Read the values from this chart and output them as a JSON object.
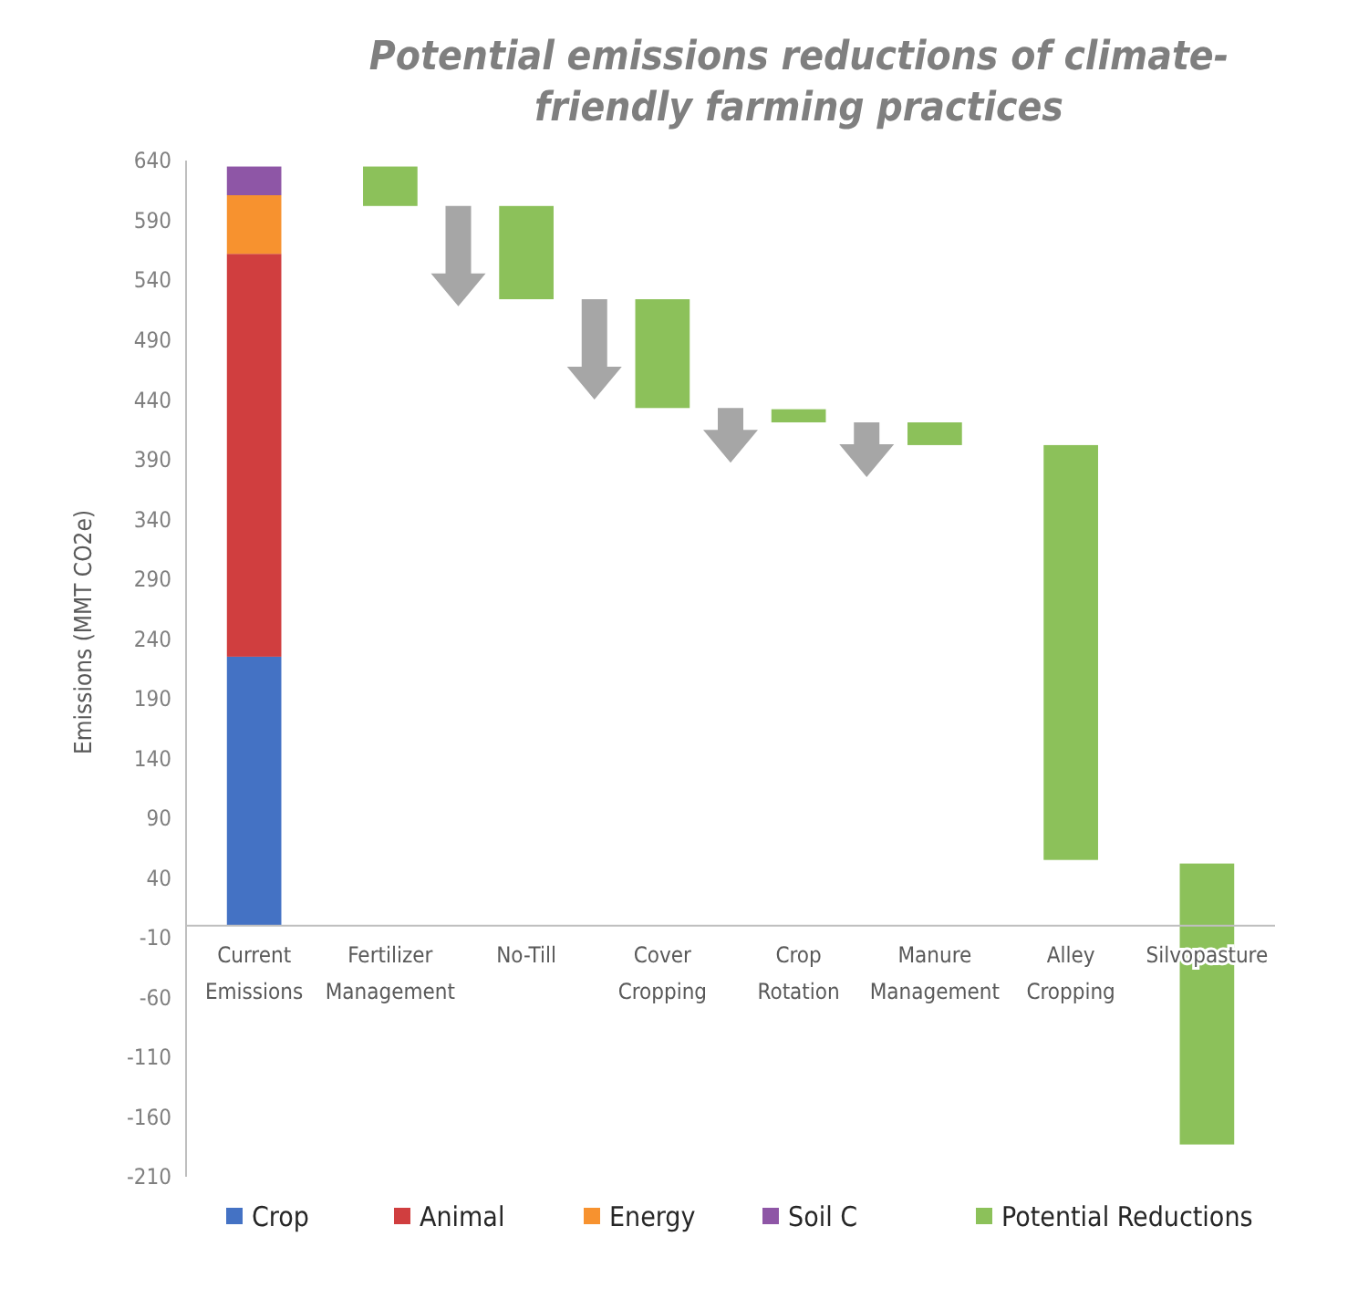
{
  "chart_data": {
    "type": "bar",
    "title": "Potential emissions reductions of climate-friendly farming practices",
    "ylabel": "Emissions (MMT CO2e)",
    "categories": [
      "Current Emissions",
      "Fertilizer Management",
      "No-Till",
      "Cover Cropping",
      "Crop Rotation",
      "Manure Management",
      "Alley Cropping",
      "Silvopasture"
    ],
    "stacked": true,
    "series": [
      {
        "name": "Crop",
        "color": "#4472c4",
        "values": [
          225,
          null,
          null,
          null,
          null,
          null,
          null,
          null
        ]
      },
      {
        "name": "Animal",
        "color": "#d03e3f",
        "values": [
          337,
          null,
          null,
          null,
          null,
          null,
          null,
          null
        ]
      },
      {
        "name": "Energy",
        "color": "#f7922f",
        "values": [
          49,
          null,
          null,
          null,
          null,
          null,
          null,
          null
        ]
      },
      {
        "name": "Soil C",
        "color": "#8e56a6",
        "values": [
          24,
          null,
          null,
          null,
          null,
          null,
          null,
          null
        ]
      },
      {
        "name": "Potential Reductions",
        "color": "#8cc15a",
        "values": [
          null,
          33,
          78,
          91,
          11,
          19,
          347,
          235
        ],
        "base": [
          null,
          602,
          524,
          433,
          421,
          402,
          55,
          -183
        ]
      }
    ],
    "ylim": [
      -210,
      640
    ],
    "yticks": [
      -210,
      -160,
      -110,
      -60,
      -10,
      40,
      90,
      140,
      190,
      240,
      290,
      340,
      390,
      440,
      490,
      540,
      590,
      640
    ],
    "legend": "bottom"
  }
}
